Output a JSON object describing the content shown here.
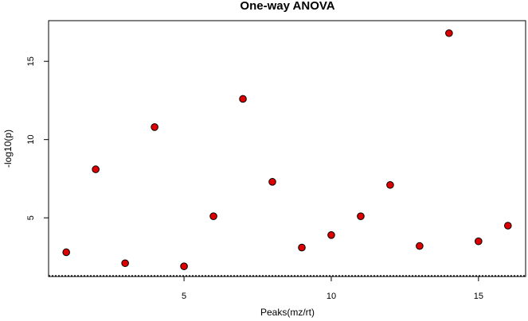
{
  "chart_data": {
    "type": "scatter",
    "title": "One-way ANOVA",
    "xlabel": "Peaks(mz/rt)",
    "ylabel": "-log10(p)",
    "xlim": [
      0.4,
      16.6
    ],
    "ylim": [
      1.25,
      17.6
    ],
    "x_ticks": [
      5,
      10,
      15
    ],
    "y_ticks": [
      5,
      10,
      15
    ],
    "threshold": 1.3,
    "point_color": "#dd0000",
    "points": [
      {
        "x": 1,
        "y": 2.8
      },
      {
        "x": 2,
        "y": 8.1
      },
      {
        "x": 3,
        "y": 2.1
      },
      {
        "x": 4,
        "y": 10.8
      },
      {
        "x": 5,
        "y": 1.9
      },
      {
        "x": 6,
        "y": 5.1
      },
      {
        "x": 7,
        "y": 12.6
      },
      {
        "x": 8,
        "y": 7.3
      },
      {
        "x": 9,
        "y": 3.1
      },
      {
        "x": 10,
        "y": 3.9
      },
      {
        "x": 11,
        "y": 5.1
      },
      {
        "x": 12,
        "y": 7.1
      },
      {
        "x": 13,
        "y": 3.2
      },
      {
        "x": 14,
        "y": 16.8
      },
      {
        "x": 15,
        "y": 3.5
      },
      {
        "x": 16,
        "y": 4.5
      }
    ]
  }
}
